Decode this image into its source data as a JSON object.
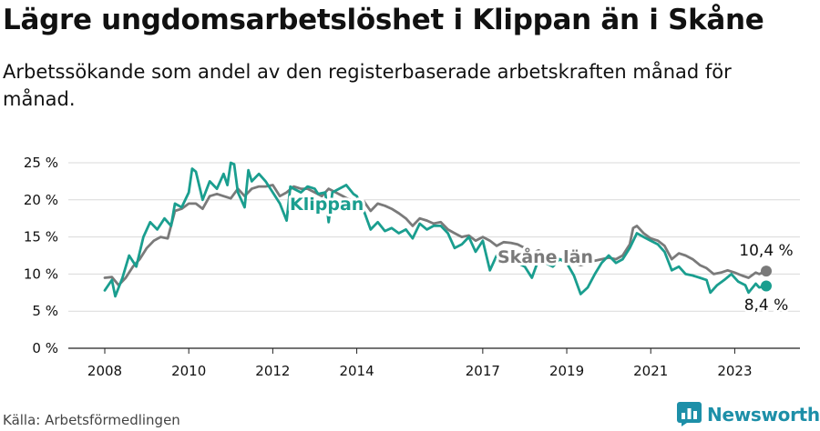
{
  "title": "Lägre ungdomsarbetslöshet i Klippan än i Skåne",
  "subtitle": "Arbetssökande som andel av den registerbaserade arbetskraften månad för månad.",
  "source": "Källa: Arbetsförmedlingen",
  "brand": "Newsworthy",
  "colors": {
    "klippan": "#1a9e8f",
    "skane": "#7a7a7a",
    "grid": "#d9d9d9",
    "brand": "#1d8fa8"
  },
  "chart_data": {
    "type": "line",
    "title": "Lägre ungdomsarbetslöshet i Klippan än i Skåne",
    "xlabel": "",
    "ylabel": "",
    "x_range": [
      2008.0,
      2023.75
    ],
    "ylim": [
      0,
      25
    ],
    "x_ticks": [
      2008,
      2010,
      2012,
      2014,
      2017,
      2019,
      2021,
      2023
    ],
    "y_ticks": [
      0,
      5,
      10,
      15,
      20,
      25
    ],
    "y_tick_labels": [
      "0 %",
      "5 %",
      "10 %",
      "15 %",
      "20 %",
      "25 %"
    ],
    "series": [
      {
        "name": "Klippan",
        "label": "Klippan",
        "end_label": "8,4 %",
        "points": [
          [
            2008.0,
            7.8
          ],
          [
            2008.17,
            9.2
          ],
          [
            2008.25,
            7.0
          ],
          [
            2008.42,
            9.5
          ],
          [
            2008.58,
            12.5
          ],
          [
            2008.75,
            11.0
          ],
          [
            2008.92,
            15.0
          ],
          [
            2009.08,
            17.0
          ],
          [
            2009.25,
            16.0
          ],
          [
            2009.42,
            17.5
          ],
          [
            2009.58,
            16.5
          ],
          [
            2009.67,
            19.5
          ],
          [
            2009.83,
            19.0
          ],
          [
            2010.0,
            21.0
          ],
          [
            2010.08,
            24.2
          ],
          [
            2010.17,
            23.8
          ],
          [
            2010.33,
            20.0
          ],
          [
            2010.5,
            22.5
          ],
          [
            2010.67,
            21.5
          ],
          [
            2010.83,
            23.5
          ],
          [
            2010.92,
            22.0
          ],
          [
            2011.0,
            25.0
          ],
          [
            2011.08,
            24.8
          ],
          [
            2011.17,
            21.0
          ],
          [
            2011.33,
            19.0
          ],
          [
            2011.42,
            24.0
          ],
          [
            2011.5,
            22.5
          ],
          [
            2011.67,
            23.5
          ],
          [
            2011.83,
            22.5
          ],
          [
            2012.0,
            21.0
          ],
          [
            2012.17,
            19.5
          ],
          [
            2012.33,
            17.2
          ],
          [
            2012.42,
            21.8
          ],
          [
            2012.5,
            21.5
          ],
          [
            2012.67,
            21.0
          ],
          [
            2012.83,
            21.8
          ],
          [
            2013.0,
            21.5
          ],
          [
            2013.08,
            20.8
          ],
          [
            2013.25,
            21.0
          ],
          [
            2013.33,
            17.0
          ],
          [
            2013.42,
            21.0
          ],
          [
            2013.58,
            21.5
          ],
          [
            2013.75,
            22.0
          ],
          [
            2013.92,
            20.8
          ],
          [
            2014.0,
            20.5
          ],
          [
            2014.17,
            18.5
          ],
          [
            2014.33,
            16.0
          ],
          [
            2014.5,
            17.0
          ],
          [
            2014.67,
            15.8
          ],
          [
            2014.83,
            16.2
          ],
          [
            2015.0,
            15.5
          ],
          [
            2015.17,
            16.0
          ],
          [
            2015.33,
            14.8
          ],
          [
            2015.5,
            16.8
          ],
          [
            2015.67,
            16.0
          ],
          [
            2015.83,
            16.5
          ],
          [
            2016.0,
            16.5
          ],
          [
            2016.17,
            15.5
          ],
          [
            2016.33,
            13.5
          ],
          [
            2016.5,
            14.0
          ],
          [
            2016.67,
            15.0
          ],
          [
            2016.83,
            13.0
          ],
          [
            2017.0,
            14.5
          ],
          [
            2017.17,
            10.5
          ],
          [
            2017.33,
            12.5
          ],
          [
            2017.5,
            11.5
          ],
          [
            2017.67,
            12.0
          ],
          [
            2017.83,
            11.5
          ],
          [
            2018.0,
            11.0
          ],
          [
            2018.17,
            9.5
          ],
          [
            2018.33,
            12.0
          ],
          [
            2018.5,
            11.5
          ],
          [
            2018.67,
            11.0
          ],
          [
            2018.83,
            12.0
          ],
          [
            2019.0,
            11.5
          ],
          [
            2019.17,
            9.8
          ],
          [
            2019.33,
            7.3
          ],
          [
            2019.5,
            8.2
          ],
          [
            2019.67,
            10.0
          ],
          [
            2019.83,
            11.5
          ],
          [
            2020.0,
            12.5
          ],
          [
            2020.17,
            11.5
          ],
          [
            2020.33,
            12.0
          ],
          [
            2020.5,
            13.5
          ],
          [
            2020.67,
            15.5
          ],
          [
            2020.83,
            15.0
          ],
          [
            2021.0,
            14.5
          ],
          [
            2021.17,
            14.0
          ],
          [
            2021.33,
            13.0
          ],
          [
            2021.5,
            10.5
          ],
          [
            2021.67,
            11.0
          ],
          [
            2021.83,
            10.0
          ],
          [
            2022.0,
            9.8
          ],
          [
            2022.17,
            9.5
          ],
          [
            2022.33,
            9.2
          ],
          [
            2022.42,
            7.5
          ],
          [
            2022.58,
            8.5
          ],
          [
            2022.75,
            9.2
          ],
          [
            2022.92,
            10.0
          ],
          [
            2023.08,
            9.0
          ],
          [
            2023.25,
            8.5
          ],
          [
            2023.33,
            7.5
          ],
          [
            2023.5,
            8.7
          ],
          [
            2023.58,
            8.2
          ],
          [
            2023.75,
            8.4
          ]
        ]
      },
      {
        "name": "Skåne län",
        "label": "Skåne län",
        "end_label": "10,4 %",
        "points": [
          [
            2008.0,
            9.5
          ],
          [
            2008.17,
            9.6
          ],
          [
            2008.33,
            8.5
          ],
          [
            2008.5,
            9.5
          ],
          [
            2008.67,
            11.0
          ],
          [
            2008.83,
            12.0
          ],
          [
            2009.0,
            13.5
          ],
          [
            2009.17,
            14.5
          ],
          [
            2009.33,
            15.0
          ],
          [
            2009.5,
            14.8
          ],
          [
            2009.67,
            18.5
          ],
          [
            2009.83,
            18.8
          ],
          [
            2010.0,
            19.5
          ],
          [
            2010.17,
            19.5
          ],
          [
            2010.33,
            18.8
          ],
          [
            2010.5,
            20.5
          ],
          [
            2010.67,
            20.8
          ],
          [
            2010.83,
            20.5
          ],
          [
            2011.0,
            20.2
          ],
          [
            2011.17,
            21.5
          ],
          [
            2011.33,
            20.5
          ],
          [
            2011.5,
            21.5
          ],
          [
            2011.67,
            21.8
          ],
          [
            2011.83,
            21.8
          ],
          [
            2012.0,
            22.0
          ],
          [
            2012.17,
            20.5
          ],
          [
            2012.33,
            21.0
          ],
          [
            2012.5,
            21.8
          ],
          [
            2012.67,
            21.5
          ],
          [
            2012.83,
            21.5
          ],
          [
            2013.0,
            21.0
          ],
          [
            2013.17,
            20.5
          ],
          [
            2013.33,
            21.5
          ],
          [
            2013.5,
            21.0
          ],
          [
            2013.67,
            20.5
          ],
          [
            2013.83,
            20.0
          ],
          [
            2014.0,
            19.5
          ],
          [
            2014.17,
            19.8
          ],
          [
            2014.33,
            18.5
          ],
          [
            2014.5,
            19.5
          ],
          [
            2014.67,
            19.2
          ],
          [
            2014.83,
            18.8
          ],
          [
            2015.0,
            18.2
          ],
          [
            2015.17,
            17.5
          ],
          [
            2015.33,
            16.5
          ],
          [
            2015.5,
            17.5
          ],
          [
            2015.67,
            17.2
          ],
          [
            2015.83,
            16.8
          ],
          [
            2016.0,
            17.0
          ],
          [
            2016.17,
            16.0
          ],
          [
            2016.33,
            15.5
          ],
          [
            2016.5,
            15.0
          ],
          [
            2016.67,
            15.2
          ],
          [
            2016.83,
            14.5
          ],
          [
            2017.0,
            15.0
          ],
          [
            2017.17,
            14.5
          ],
          [
            2017.33,
            13.8
          ],
          [
            2017.5,
            14.3
          ],
          [
            2017.67,
            14.2
          ],
          [
            2017.83,
            14.0
          ],
          [
            2018.0,
            13.5
          ],
          [
            2018.17,
            12.8
          ],
          [
            2018.33,
            13.2
          ],
          [
            2018.5,
            12.5
          ],
          [
            2018.67,
            12.2
          ],
          [
            2018.83,
            12.0
          ],
          [
            2019.0,
            11.8
          ],
          [
            2019.17,
            11.5
          ],
          [
            2019.33,
            11.2
          ],
          [
            2019.5,
            11.5
          ],
          [
            2019.67,
            11.8
          ],
          [
            2019.83,
            12.0
          ],
          [
            2020.0,
            12.2
          ],
          [
            2020.17,
            12.0
          ],
          [
            2020.33,
            12.5
          ],
          [
            2020.5,
            14.0
          ],
          [
            2020.58,
            16.2
          ],
          [
            2020.67,
            16.5
          ],
          [
            2020.83,
            15.5
          ],
          [
            2021.0,
            14.8
          ],
          [
            2021.17,
            14.5
          ],
          [
            2021.33,
            13.8
          ],
          [
            2021.5,
            12.0
          ],
          [
            2021.67,
            12.8
          ],
          [
            2021.83,
            12.5
          ],
          [
            2022.0,
            12.0
          ],
          [
            2022.17,
            11.2
          ],
          [
            2022.33,
            10.8
          ],
          [
            2022.5,
            10.0
          ],
          [
            2022.67,
            10.2
          ],
          [
            2022.83,
            10.5
          ],
          [
            2023.0,
            10.2
          ],
          [
            2023.17,
            9.8
          ],
          [
            2023.33,
            9.5
          ],
          [
            2023.5,
            10.2
          ],
          [
            2023.58,
            10.0
          ],
          [
            2023.75,
            10.4
          ]
        ]
      }
    ]
  }
}
